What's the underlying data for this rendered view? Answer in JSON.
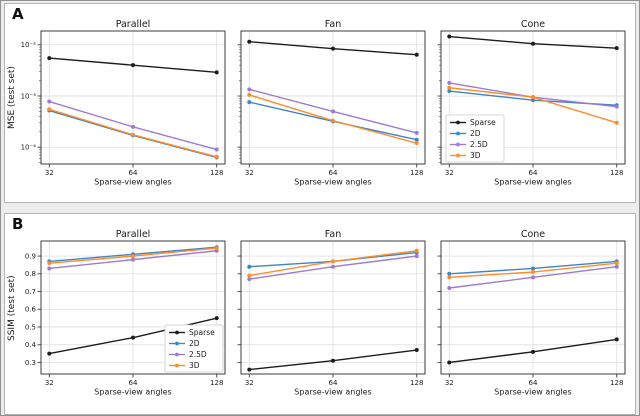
{
  "figure": {
    "background": "#ececec",
    "panel_background": "#ffffff",
    "panel_border": "#b3b3b3",
    "outer_border": "#8f8f8f",
    "grid_color": "#e2e2e2",
    "axis_color": "#3d3d3d",
    "text_color": "#1a1a1a"
  },
  "series_colors": {
    "Sparse": "#1c1c1c",
    "2D": "#3f85c2",
    "2.5D": "#9d7bce",
    "3D": "#ff8c30"
  },
  "legend_entries": [
    "Sparse",
    "2D",
    "2.5D",
    "3D"
  ],
  "panels": [
    {
      "letter": "A",
      "ylabel": "MSE (test set)",
      "chart_indexes": [
        0,
        1,
        2
      ]
    },
    {
      "letter": "B",
      "ylabel": "SSIM (test set)",
      "chart_indexes": [
        3,
        4,
        5
      ]
    }
  ],
  "chart_data": [
    {
      "type": "line",
      "panel": "A",
      "title": "Parallel",
      "xlabel": "Sparse-view angles",
      "ylabel": "MSE (test set)",
      "x": [
        32,
        64,
        128
      ],
      "x_tick_labels": [
        "32",
        "64",
        "128"
      ],
      "y_scale": "log",
      "ylim": [
        4.7e-05,
        0.0186
      ],
      "grid": true,
      "y_ticks": {
        "values": [
          0.01,
          0.001,
          0.0001
        ],
        "labels": [
          "10⁻²",
          "10⁻³",
          "10⁻⁴"
        ],
        "show_labels": true
      },
      "legend": {
        "show": false
      },
      "series": [
        {
          "name": "Sparse",
          "values": [
            0.0055,
            0.004,
            0.0029
          ]
        },
        {
          "name": "2D",
          "values": [
            0.00052,
            0.00017,
            6.3e-05
          ]
        },
        {
          "name": "2.5D",
          "values": [
            0.00078,
            0.00025,
            9e-05
          ]
        },
        {
          "name": "3D",
          "values": [
            0.00055,
            0.000175,
            6.5e-05
          ]
        }
      ]
    },
    {
      "type": "line",
      "panel": "A",
      "title": "Fan",
      "xlabel": "Sparse-view angles",
      "ylabel": "MSE (test set)",
      "x": [
        32,
        64,
        128
      ],
      "x_tick_labels": [
        "32",
        "64",
        "128"
      ],
      "y_scale": "log",
      "ylim": [
        4.7e-05,
        0.0186
      ],
      "grid": true,
      "y_ticks": {
        "values": [
          0.01,
          0.001,
          0.0001
        ],
        "labels": [
          "10⁻²",
          "10⁻³",
          "10⁻⁴"
        ],
        "show_labels": false
      },
      "legend": {
        "show": false
      },
      "series": [
        {
          "name": "Sparse",
          "values": [
            0.0115,
            0.0084,
            0.0064
          ]
        },
        {
          "name": "2D",
          "values": [
            0.00076,
            0.00032,
            0.00014
          ]
        },
        {
          "name": "2.5D",
          "values": [
            0.00135,
            0.0005,
            0.00019
          ]
        },
        {
          "name": "3D",
          "values": [
            0.00105,
            0.00033,
            0.00012
          ]
        }
      ]
    },
    {
      "type": "line",
      "panel": "A",
      "title": "Cone",
      "xlabel": "Sparse-view angles",
      "ylabel": "MSE (test set)",
      "x": [
        32,
        64,
        128
      ],
      "x_tick_labels": [
        "32",
        "64",
        "128"
      ],
      "y_scale": "log",
      "ylim": [
        4.7e-05,
        0.0186
      ],
      "grid": true,
      "y_ticks": {
        "values": [
          0.01,
          0.001,
          0.0001
        ],
        "labels": [
          "10⁻²",
          "10⁻³",
          "10⁻⁴"
        ],
        "show_labels": false
      },
      "legend": {
        "show": true,
        "loc": "lower-left",
        "entries": [
          "Sparse",
          "2D",
          "2.5D",
          "3D"
        ]
      },
      "series": [
        {
          "name": "Sparse",
          "values": [
            0.0145,
            0.0105,
            0.0086
          ]
        },
        {
          "name": "2D",
          "values": [
            0.00125,
            0.00083,
            0.00066
          ]
        },
        {
          "name": "2.5D",
          "values": [
            0.0018,
            0.00095,
            0.00062
          ]
        },
        {
          "name": "3D",
          "values": [
            0.00145,
            0.00095,
            0.0003
          ]
        }
      ]
    },
    {
      "type": "line",
      "panel": "B",
      "title": "Parallel",
      "xlabel": "Sparse-view angles",
      "ylabel": "SSIM (test set)",
      "x": [
        32,
        64,
        128
      ],
      "x_tick_labels": [
        "32",
        "64",
        "128"
      ],
      "y_scale": "linear",
      "ylim": [
        0.235,
        0.985
      ],
      "grid": true,
      "y_ticks": {
        "values": [
          0.3,
          0.4,
          0.5,
          0.6,
          0.7,
          0.8,
          0.9
        ],
        "labels": [
          "0.3",
          "0.4",
          "0.5",
          "0.6",
          "0.7",
          "0.8",
          "0.9"
        ],
        "show_labels": true
      },
      "legend": {
        "show": true,
        "loc": "lower-right",
        "entries": [
          "Sparse",
          "2D",
          "2.5D",
          "3D"
        ]
      },
      "series": [
        {
          "name": "Sparse",
          "values": [
            0.35,
            0.44,
            0.55
          ]
        },
        {
          "name": "2D",
          "values": [
            0.87,
            0.91,
            0.95
          ]
        },
        {
          "name": "2.5D",
          "values": [
            0.83,
            0.88,
            0.93
          ]
        },
        {
          "name": "3D",
          "values": [
            0.86,
            0.9,
            0.945
          ]
        }
      ]
    },
    {
      "type": "line",
      "panel": "B",
      "title": "Fan",
      "xlabel": "Sparse-view angles",
      "ylabel": "SSIM (test set)",
      "x": [
        32,
        64,
        128
      ],
      "x_tick_labels": [
        "32",
        "64",
        "128"
      ],
      "y_scale": "linear",
      "ylim": [
        0.235,
        0.985
      ],
      "grid": true,
      "y_ticks": {
        "values": [
          0.3,
          0.4,
          0.5,
          0.6,
          0.7,
          0.8,
          0.9
        ],
        "labels": [
          "0.3",
          "0.4",
          "0.5",
          "0.6",
          "0.7",
          "0.8",
          "0.9"
        ],
        "show_labels": false
      },
      "legend": {
        "show": false
      },
      "series": [
        {
          "name": "Sparse",
          "values": [
            0.26,
            0.31,
            0.37
          ]
        },
        {
          "name": "2D",
          "values": [
            0.84,
            0.87,
            0.92
          ]
        },
        {
          "name": "2.5D",
          "values": [
            0.77,
            0.84,
            0.9
          ]
        },
        {
          "name": "3D",
          "values": [
            0.79,
            0.87,
            0.93
          ]
        }
      ]
    },
    {
      "type": "line",
      "panel": "B",
      "title": "Cone",
      "xlabel": "Sparse-view angles",
      "ylabel": "SSIM (test set)",
      "x": [
        32,
        64,
        128
      ],
      "x_tick_labels": [
        "32",
        "64",
        "128"
      ],
      "y_scale": "linear",
      "ylim": [
        0.235,
        0.985
      ],
      "grid": true,
      "y_ticks": {
        "values": [
          0.3,
          0.4,
          0.5,
          0.6,
          0.7,
          0.8,
          0.9
        ],
        "labels": [
          "0.3",
          "0.4",
          "0.5",
          "0.6",
          "0.7",
          "0.8",
          "0.9"
        ],
        "show_labels": false
      },
      "legend": {
        "show": false
      },
      "series": [
        {
          "name": "Sparse",
          "values": [
            0.3,
            0.36,
            0.43
          ]
        },
        {
          "name": "2D",
          "values": [
            0.8,
            0.83,
            0.87
          ]
        },
        {
          "name": "2.5D",
          "values": [
            0.72,
            0.78,
            0.84
          ]
        },
        {
          "name": "3D",
          "values": [
            0.78,
            0.81,
            0.86
          ]
        }
      ]
    }
  ]
}
